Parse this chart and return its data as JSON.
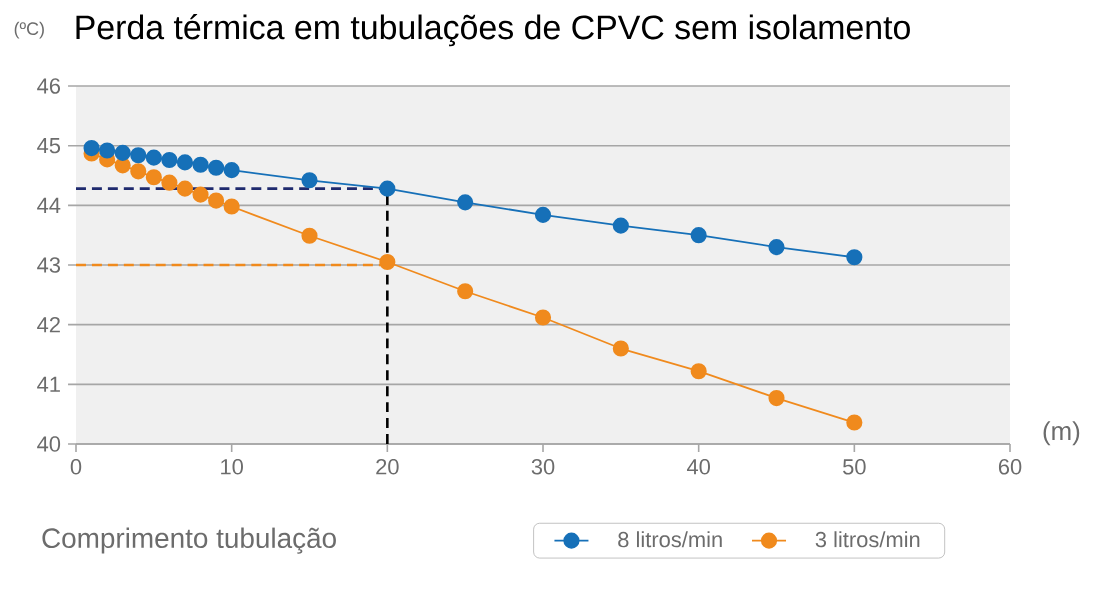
{
  "chart_data": {
    "type": "line",
    "title": "Perda térmica em tubulações de CPVC sem isolamento",
    "ylabel": "(ºC)",
    "xlabel": "Comprimento tubulação",
    "annotations": [
      "(m)"
    ],
    "xlim": [
      0,
      60
    ],
    "xticks": [
      0,
      10,
      20,
      30,
      40,
      50,
      60
    ],
    "ylim": [
      40,
      46
    ],
    "yticks": [
      40,
      41,
      42,
      43,
      44,
      45,
      46
    ],
    "grid": "y",
    "legend": "bottom",
    "marker": "circle",
    "series": [
      {
        "name": "8 litros/min",
        "color": "#1670b8",
        "x": [
          1,
          2,
          3,
          4,
          5,
          6,
          7,
          8,
          9,
          10,
          15,
          20,
          25,
          30,
          35,
          40,
          45,
          50
        ],
        "values": [
          44.96,
          44.92,
          44.88,
          44.84,
          44.8,
          44.76,
          44.72,
          44.68,
          44.63,
          44.59,
          44.42,
          44.28,
          44.05,
          43.84,
          43.66,
          43.5,
          43.3,
          43.13
        ]
      },
      {
        "name": "3 litros/min",
        "color": "#f08a1d",
        "x": [
          1,
          2,
          3,
          4,
          5,
          6,
          7,
          8,
          9,
          10,
          15,
          20,
          25,
          30,
          35,
          40,
          45,
          50
        ],
        "values": [
          44.87,
          44.77,
          44.67,
          44.57,
          44.47,
          44.38,
          44.28,
          44.18,
          44.08,
          43.98,
          43.49,
          43.05,
          42.56,
          42.12,
          41.6,
          41.22,
          40.77,
          40.36
        ]
      }
    ],
    "ref_lines": [
      {
        "axis": "y",
        "value": 44.28,
        "color": "#1f2a6e",
        "line_style": "dashed"
      },
      {
        "axis": "y",
        "value": 43,
        "color": "#f08a1d",
        "line_style": "dashed"
      },
      {
        "axis": "x",
        "value": 20,
        "color": "#000000",
        "line_style": "dashed"
      }
    ]
  }
}
